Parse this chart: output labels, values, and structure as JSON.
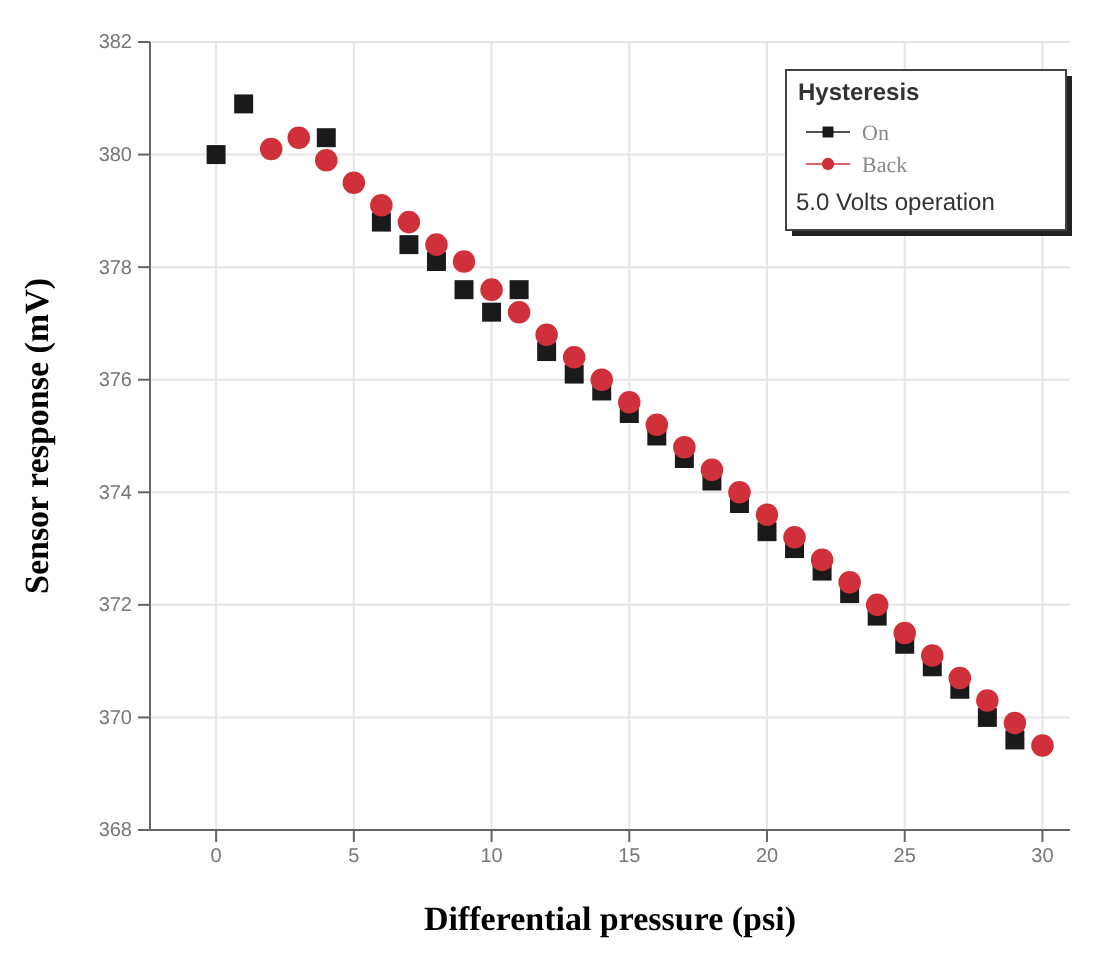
{
  "chart_data": {
    "type": "scatter",
    "xlabel": "Differential pressure (psi)",
    "ylabel": "Sensor response (mV)",
    "legend_title": "Hysteresis",
    "annotations": [
      "5.0 Volts operation"
    ],
    "xlim": [
      -2.4,
      31
    ],
    "ylim": [
      368,
      382
    ],
    "xticks": [
      0,
      5,
      10,
      15,
      20,
      25,
      30
    ],
    "yticks": [
      368,
      370,
      372,
      374,
      376,
      378,
      380,
      382
    ],
    "grid": true,
    "legend": "top right",
    "series": [
      {
        "name": "On",
        "color": "#1a1a1a",
        "marker": "square",
        "x": [
          0,
          1,
          4,
          6,
          7,
          8,
          9,
          10,
          11,
          12,
          13,
          14,
          15,
          16,
          17,
          18,
          19,
          20,
          21,
          22,
          23,
          24,
          25,
          26,
          27,
          28,
          29
        ],
        "values": [
          380.0,
          380.9,
          380.3,
          378.8,
          378.4,
          378.1,
          377.6,
          377.2,
          377.6,
          376.5,
          376.1,
          375.8,
          375.4,
          375.0,
          374.6,
          374.2,
          373.8,
          373.3,
          373.0,
          372.6,
          372.2,
          371.8,
          371.3,
          370.9,
          370.5,
          370.0,
          369.6
        ]
      },
      {
        "name": "Back",
        "color": "#d0303a",
        "marker": "circle",
        "x": [
          2,
          3,
          4,
          5,
          6,
          7,
          8,
          9,
          10,
          11,
          12,
          13,
          14,
          15,
          16,
          17,
          18,
          19,
          20,
          21,
          22,
          23,
          24,
          25,
          26,
          27,
          28,
          29,
          30
        ],
        "values": [
          380.1,
          380.3,
          379.9,
          379.5,
          379.1,
          378.8,
          378.4,
          378.1,
          377.6,
          377.2,
          376.8,
          376.4,
          376.0,
          375.6,
          375.2,
          374.8,
          374.4,
          374.0,
          373.6,
          373.2,
          372.8,
          372.4,
          372.0,
          371.5,
          371.1,
          370.7,
          370.3,
          369.9,
          369.5
        ]
      }
    ]
  }
}
